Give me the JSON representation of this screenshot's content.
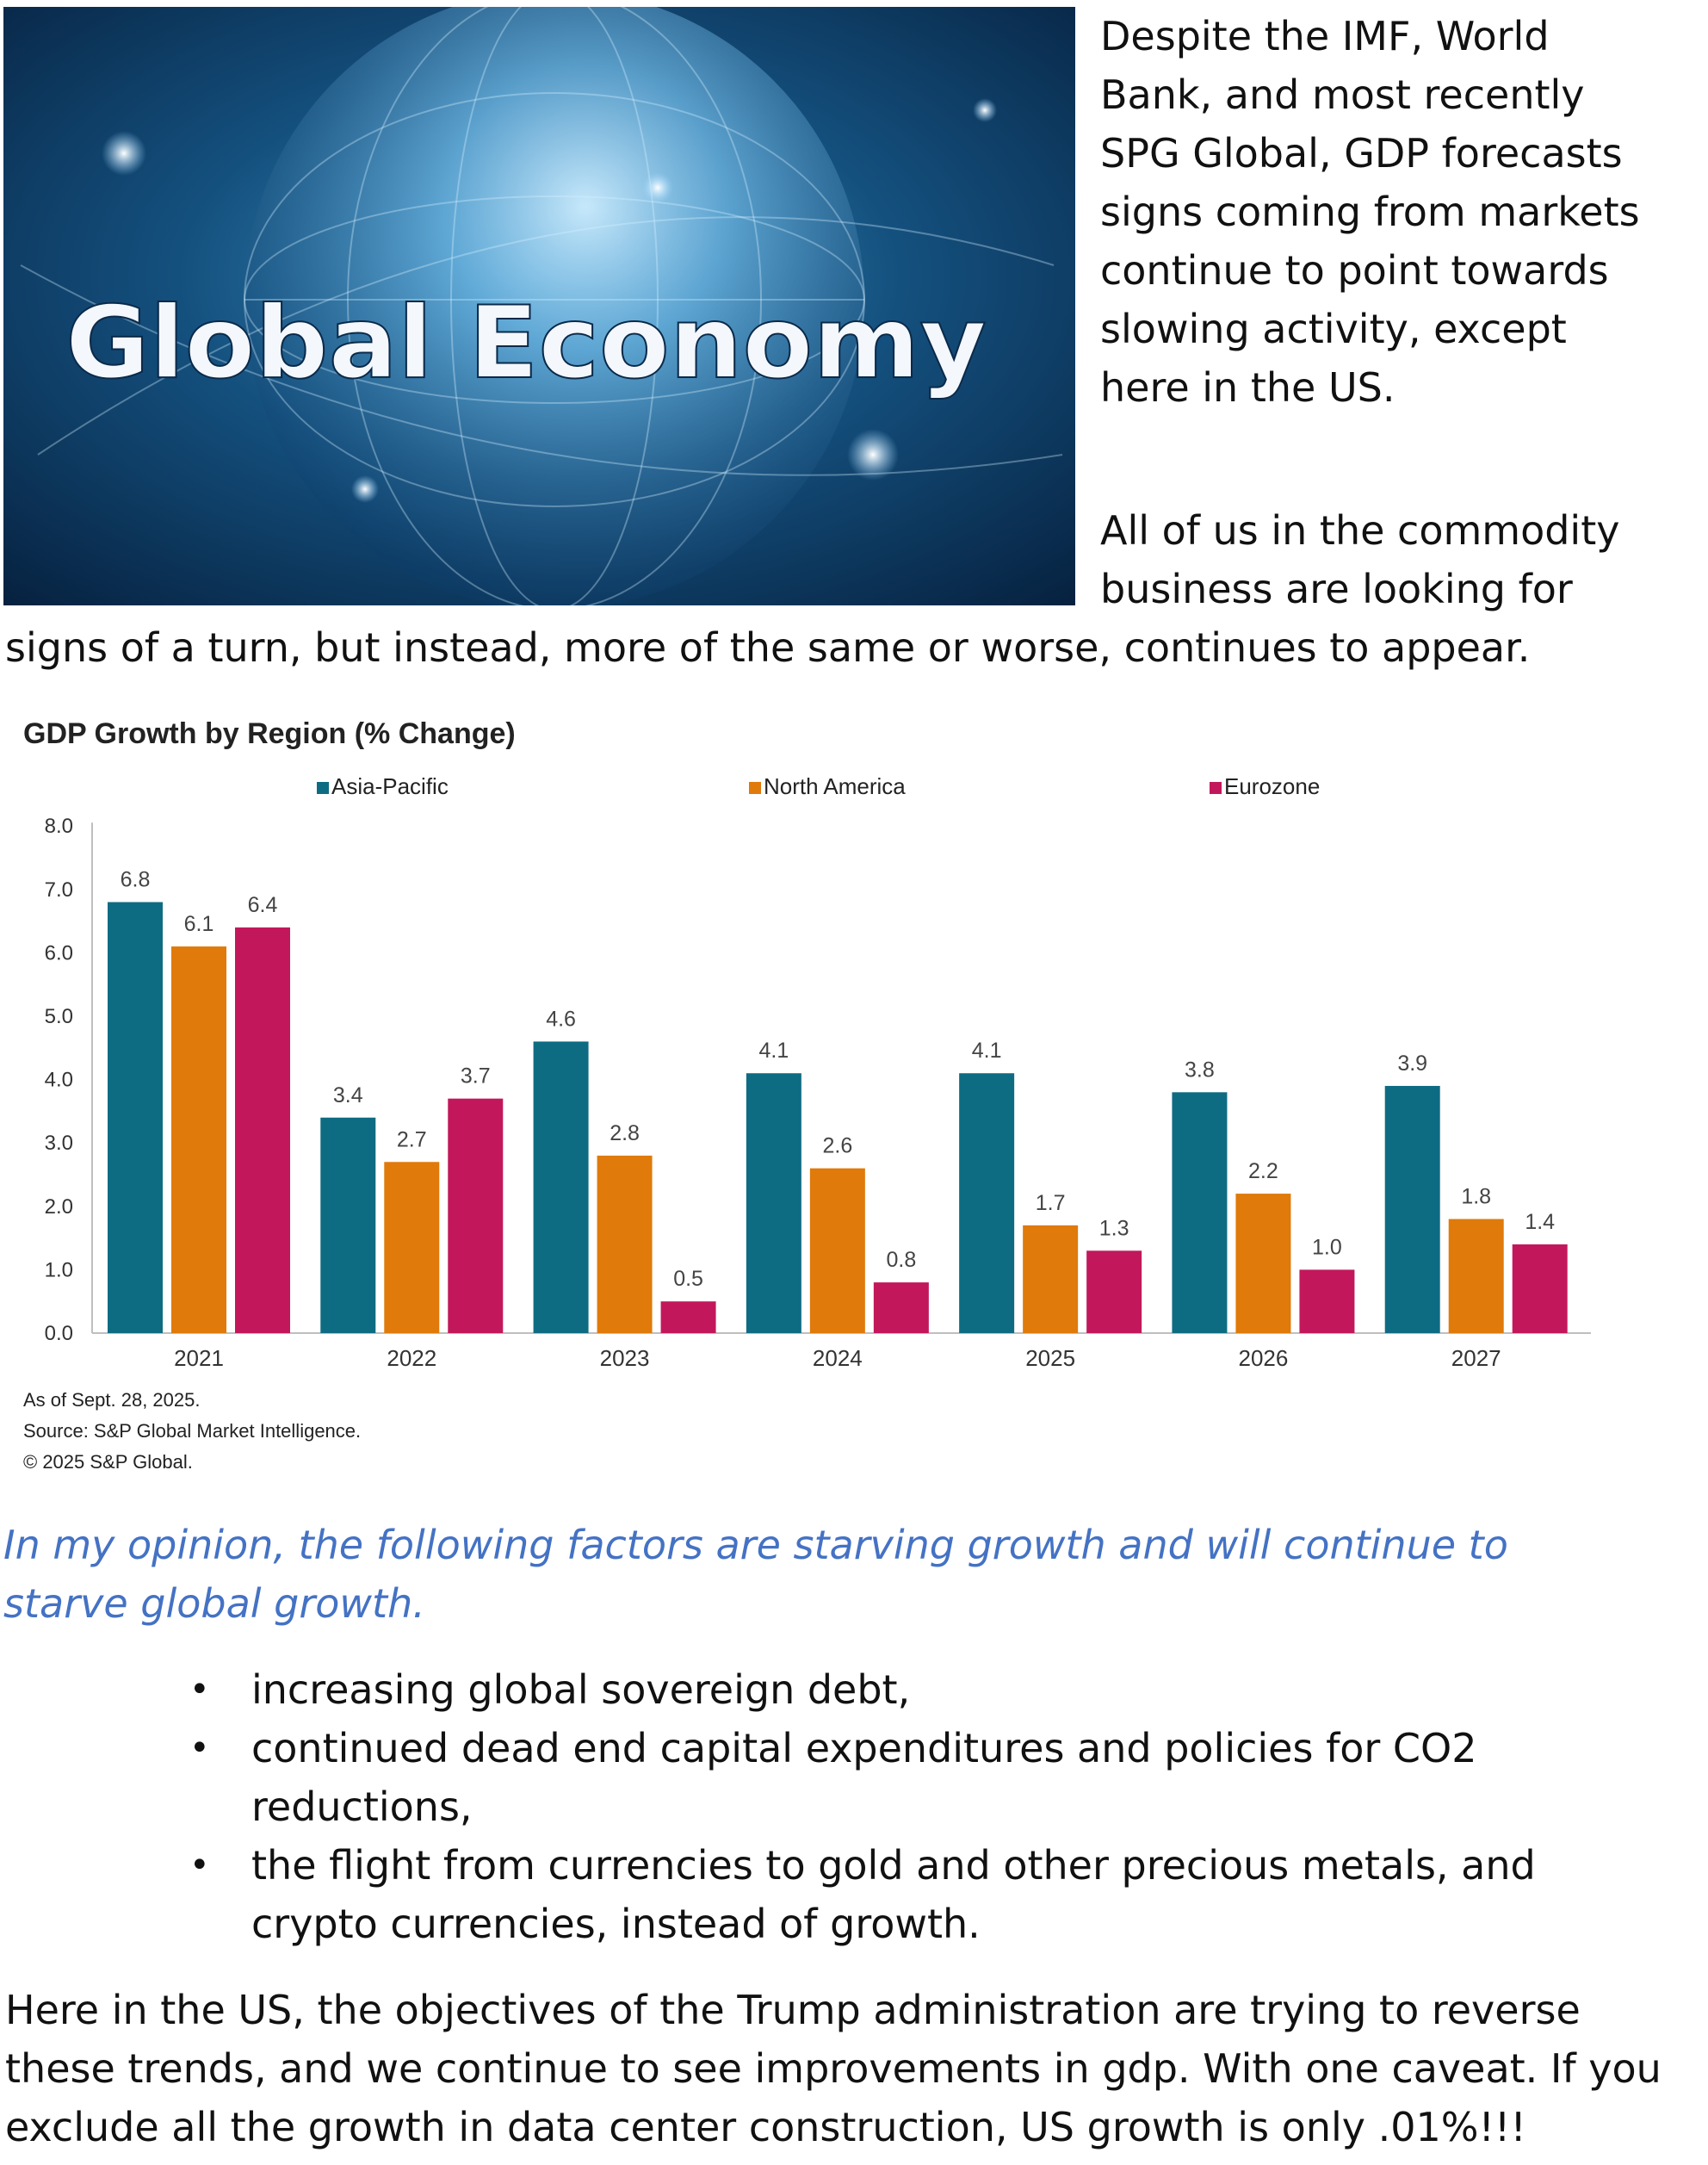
{
  "hero": {
    "image_caption": "Global Economy"
  },
  "intro": {
    "paragraph1": "Despite the IMF, World Bank, and most recently SPG Global, GDP forecasts signs coming from markets continue to point towards slowing activity, except here in the US.",
    "paragraph2_part1": "All of us in the commodity business are looking for",
    "paragraph2_part2": "signs of a turn, but instead, more of the same or worse, continues to appear."
  },
  "chart_data": {
    "type": "bar",
    "title": "GDP Growth by Region (% Change)",
    "categories": [
      "2021",
      "2022",
      "2023",
      "2024",
      "2025",
      "2026",
      "2027"
    ],
    "series": [
      {
        "name": "Asia-Pacific",
        "color": "#0e6c82",
        "values": [
          6.8,
          3.4,
          4.6,
          4.1,
          4.1,
          3.8,
          3.9
        ]
      },
      {
        "name": "North America",
        "color": "#df7a0b",
        "values": [
          6.1,
          2.7,
          2.8,
          2.6,
          1.7,
          2.2,
          1.8
        ]
      },
      {
        "name": "Eurozone",
        "color": "#c2185b",
        "values": [
          6.4,
          3.7,
          0.5,
          0.8,
          1.3,
          1.0,
          1.4
        ]
      }
    ],
    "ylim": [
      0,
      8
    ],
    "yticks": [
      "0.0",
      "1.0",
      "2.0",
      "3.0",
      "4.0",
      "5.0",
      "6.0",
      "7.0",
      "8.0"
    ],
    "legend_position": "top",
    "grid": false,
    "footnotes": [
      "As of Sept. 28, 2025.",
      "Source: S&P Global Market Intelligence.",
      "© 2025 S&P Global."
    ]
  },
  "opinion": "In my opinion, the following factors are starving growth and will continue to starve global growth.",
  "bullets": [
    "increasing global sovereign debt,",
    "continued dead end capital expenditures and policies for CO2 reductions,",
    "the flight from currencies to gold and other precious metals, and crypto currencies, instead of growth."
  ],
  "bullet_symbol": "•",
  "closing": "Here in the US, the objectives of the Trump administration are trying to reverse these trends, and we continue to see improvements in gdp. With one caveat. If you exclude all the growth in data center construction, US growth is only .01%!!!"
}
